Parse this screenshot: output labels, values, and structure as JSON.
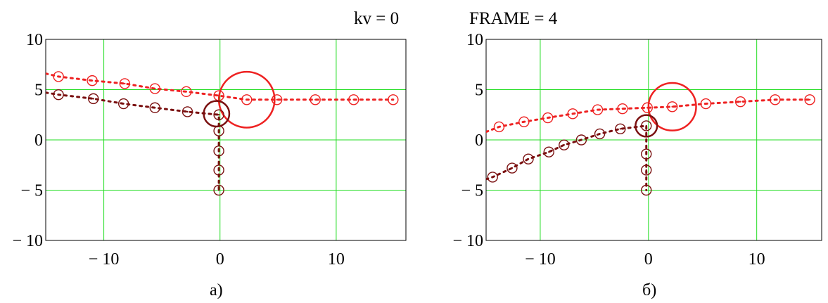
{
  "header": {
    "kv_text": "kv = 0",
    "frame_text": "FRAME = 4"
  },
  "colors": {
    "grid": "#22dd22",
    "series_light": "#ee2222",
    "series_dark": "#7a1010",
    "axes": "#000000"
  },
  "chart_data": [
    {
      "type": "scatter",
      "caption": "a)",
      "xlim": [
        -15,
        16
      ],
      "ylim": [
        -10,
        10
      ],
      "xticks": [
        -10,
        0,
        10
      ],
      "yticks": [
        -10,
        -5,
        0,
        5,
        10
      ],
      "xtick_labels": [
        "− 10",
        "0",
        "10"
      ],
      "ytick_labels": [
        "− 10",
        "− 5",
        "0",
        "5",
        "10"
      ],
      "grid": true,
      "series": [
        {
          "style": "dotted line with circle markers",
          "color": "light",
          "points": [
            [
              -15,
              6.6
            ],
            [
              -13.9,
              6.3
            ],
            [
              -11,
              5.9
            ],
            [
              -8.2,
              5.6
            ],
            [
              -5.6,
              5.1
            ],
            [
              -2.9,
              4.8
            ],
            [
              -0.1,
              4.4
            ],
            [
              2.3,
              4.0
            ],
            [
              4.9,
              4.0
            ],
            [
              8.2,
              4.0
            ],
            [
              11.5,
              4.0
            ],
            [
              14.9,
              4.0
            ]
          ],
          "highlight": {
            "x": 2.3,
            "y": 4.0,
            "r": 2.4
          }
        },
        {
          "style": "dotted line with circle markers",
          "color": "dark",
          "points": [
            [
              -15,
              4.7
            ],
            [
              -13.9,
              4.5
            ],
            [
              -10.9,
              4.1
            ],
            [
              -8.3,
              3.6
            ],
            [
              -5.6,
              3.2
            ],
            [
              -2.8,
              2.8
            ],
            [
              -0.1,
              2.5
            ],
            [
              -0.1,
              0.9
            ],
            [
              -0.1,
              -1.1
            ],
            [
              -0.1,
              -3.0
            ],
            [
              -0.1,
              -5.0
            ]
          ],
          "highlight": {
            "x": -0.3,
            "y": 2.6,
            "r": 1.1
          }
        }
      ]
    },
    {
      "type": "scatter",
      "caption": "б)",
      "xlim": [
        -15,
        16
      ],
      "ylim": [
        -10,
        10
      ],
      "xticks": [
        -10,
        0,
        10
      ],
      "yticks": [
        -10,
        -5,
        0,
        5,
        10
      ],
      "xtick_labels": [
        "− 10",
        "0",
        "10"
      ],
      "ytick_labels": [
        "− 10",
        "− 5",
        "0",
        "5",
        "10"
      ],
      "grid": true,
      "series": [
        {
          "style": "dotted line with circle markers",
          "color": "light",
          "points": [
            [
              -15,
              0.8
            ],
            [
              -13.8,
              1.3
            ],
            [
              -11.5,
              1.8
            ],
            [
              -9.3,
              2.2
            ],
            [
              -7.0,
              2.6
            ],
            [
              -4.7,
              3.0
            ],
            [
              -2.4,
              3.1
            ],
            [
              -0.1,
              3.2
            ],
            [
              2.2,
              3.3
            ],
            [
              5.3,
              3.6
            ],
            [
              8.5,
              3.8
            ],
            [
              11.7,
              4.0
            ],
            [
              14.9,
              4.0
            ]
          ],
          "highlight": {
            "x": 2.2,
            "y": 3.3,
            "r": 2.2
          }
        },
        {
          "style": "dotted line with circle markers",
          "color": "dark",
          "points": [
            [
              -15,
              -3.9
            ],
            [
              -14.4,
              -3.7
            ],
            [
              -12.6,
              -2.8
            ],
            [
              -11.1,
              -1.9
            ],
            [
              -9.2,
              -1.2
            ],
            [
              -7.8,
              -0.5
            ],
            [
              -6.2,
              0.0
            ],
            [
              -4.5,
              0.6
            ],
            [
              -2.6,
              1.1
            ],
            [
              -0.2,
              1.4
            ],
            [
              -0.2,
              -1.4
            ],
            [
              -0.2,
              -3.0
            ],
            [
              -0.2,
              -5.0
            ]
          ],
          "highlight": {
            "x": -0.2,
            "y": 1.4,
            "r": 1.0
          }
        }
      ]
    }
  ]
}
